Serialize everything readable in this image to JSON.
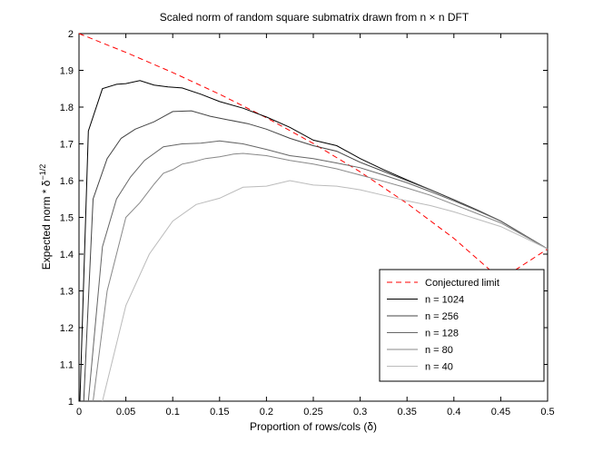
{
  "chart_data": {
    "type": "line",
    "title": "Scaled norm of random square submatrix drawn from n × n DFT",
    "xlabel": "Proportion of rows/cols (δ)",
    "ylabel_main": "Expected norm * δ",
    "ylabel_sup": "−1/2",
    "xlim": [
      0,
      0.5
    ],
    "ylim": [
      1,
      2
    ],
    "xticks": [
      "0",
      "0.05",
      "0.1",
      "0.15",
      "0.2",
      "0.25",
      "0.3",
      "0.35",
      "0.4",
      "0.45",
      "0.5"
    ],
    "yticks": [
      "1",
      "1.1",
      "1.2",
      "1.3",
      "1.4",
      "1.5",
      "1.6",
      "1.7",
      "1.8",
      "1.9",
      "2"
    ],
    "grid": false,
    "legend_position": "bottom-right",
    "series": [
      {
        "name": "Conjectured limit",
        "color": "#ff0000",
        "dash": "dashed",
        "x": [
          0,
          0.05,
          0.1,
          0.15,
          0.2,
          0.25,
          0.3,
          0.35,
          0.4,
          0.45,
          0.5
        ],
        "y": [
          2.0,
          1.949,
          1.894,
          1.835,
          1.771,
          1.701,
          1.624,
          1.538,
          1.443,
          1.331,
          1.414
        ]
      },
      {
        "name": "n = 1024",
        "color": "#000000",
        "x": [
          0.001,
          0.01,
          0.025,
          0.04,
          0.05,
          0.065,
          0.08,
          0.095,
          0.11,
          0.13,
          0.15,
          0.175,
          0.2,
          0.225,
          0.25,
          0.275,
          0.3,
          0.325,
          0.35,
          0.375,
          0.4,
          0.425,
          0.45,
          0.475,
          0.5
        ],
        "y": [
          1.0,
          1.735,
          1.85,
          1.862,
          1.864,
          1.872,
          1.86,
          1.855,
          1.852,
          1.835,
          1.815,
          1.797,
          1.773,
          1.745,
          1.71,
          1.695,
          1.66,
          1.63,
          1.602,
          1.575,
          1.548,
          1.52,
          1.49,
          1.452,
          1.414
        ]
      },
      {
        "name": "n = 256",
        "color": "#444444",
        "x": [
          0.005,
          0.015,
          0.03,
          0.045,
          0.06,
          0.08,
          0.1,
          0.12,
          0.14,
          0.16,
          0.18,
          0.2,
          0.225,
          0.25,
          0.275,
          0.3,
          0.325,
          0.35,
          0.375,
          0.4,
          0.425,
          0.45,
          0.475,
          0.5
        ],
        "y": [
          1.0,
          1.55,
          1.66,
          1.715,
          1.74,
          1.76,
          1.788,
          1.79,
          1.775,
          1.765,
          1.755,
          1.74,
          1.715,
          1.695,
          1.68,
          1.65,
          1.625,
          1.6,
          1.575,
          1.548,
          1.52,
          1.49,
          1.452,
          1.414
        ]
      },
      {
        "name": "n = 128",
        "color": "#666666",
        "x": [
          0.01,
          0.025,
          0.04,
          0.055,
          0.07,
          0.09,
          0.11,
          0.13,
          0.15,
          0.175,
          0.2,
          0.225,
          0.25,
          0.275,
          0.3,
          0.325,
          0.35,
          0.375,
          0.4,
          0.425,
          0.45,
          0.475,
          0.5
        ],
        "y": [
          1.0,
          1.42,
          1.55,
          1.61,
          1.655,
          1.692,
          1.7,
          1.702,
          1.708,
          1.7,
          1.685,
          1.668,
          1.66,
          1.648,
          1.635,
          1.615,
          1.594,
          1.57,
          1.545,
          1.518,
          1.49,
          1.452,
          1.414
        ]
      },
      {
        "name": "n = 80",
        "color": "#888888",
        "x": [
          0.015,
          0.03,
          0.05,
          0.065,
          0.08,
          0.09,
          0.1,
          0.11,
          0.12,
          0.135,
          0.15,
          0.165,
          0.175,
          0.2,
          0.225,
          0.25,
          0.275,
          0.3,
          0.325,
          0.35,
          0.375,
          0.4,
          0.425,
          0.45,
          0.475,
          0.5
        ],
        "y": [
          1.0,
          1.3,
          1.5,
          1.54,
          1.59,
          1.62,
          1.63,
          1.645,
          1.65,
          1.66,
          1.665,
          1.672,
          1.674,
          1.668,
          1.655,
          1.645,
          1.632,
          1.615,
          1.598,
          1.58,
          1.56,
          1.535,
          1.51,
          1.485,
          1.45,
          1.414
        ]
      },
      {
        "name": "n = 40",
        "color": "#bbbbbb",
        "x": [
          0.025,
          0.05,
          0.075,
          0.1,
          0.125,
          0.15,
          0.175,
          0.2,
          0.225,
          0.25,
          0.275,
          0.3,
          0.325,
          0.35,
          0.375,
          0.4,
          0.425,
          0.45,
          0.475,
          0.5
        ],
        "y": [
          1.0,
          1.26,
          1.4,
          1.49,
          1.535,
          1.552,
          1.582,
          1.585,
          1.6,
          1.588,
          1.585,
          1.575,
          1.56,
          1.545,
          1.532,
          1.515,
          1.495,
          1.475,
          1.445,
          1.414
        ]
      }
    ]
  }
}
